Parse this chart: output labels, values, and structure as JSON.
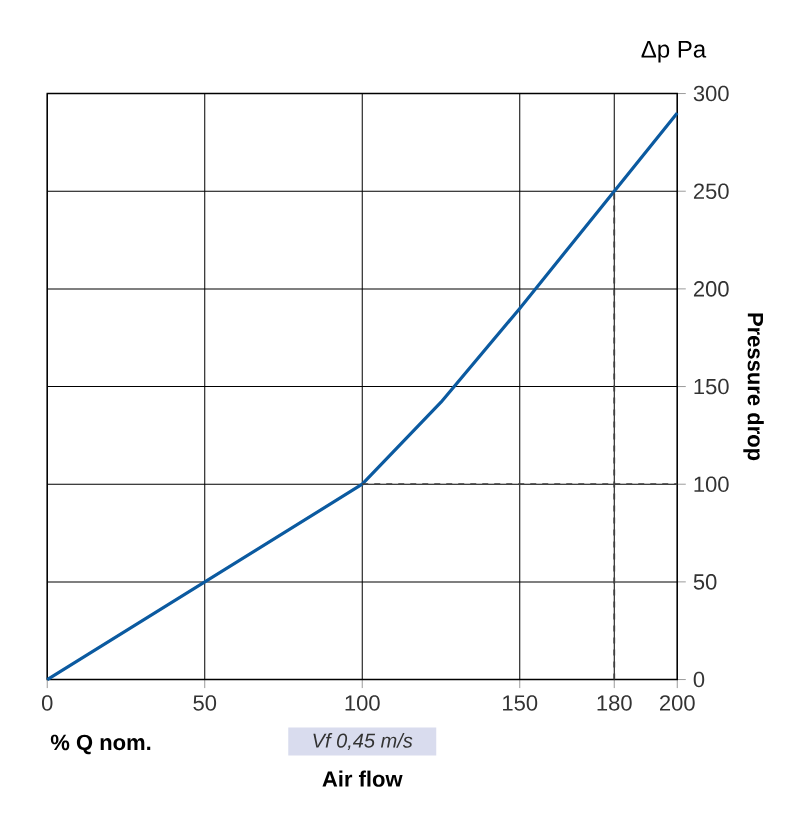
{
  "chart_data": {
    "type": "line",
    "xlabel": "Air flow",
    "ylabel": "Pressure drop",
    "annotations": [
      "Δp Pa",
      "% Q nom.",
      "*Vf 0,45 m/s*"
    ],
    "x": [
      0,
      50,
      100,
      125,
      150,
      180,
      200
    ],
    "series": [
      {
        "color": "#0b5aa0",
        "values": [
          0,
          50,
          100,
          142,
          190,
          250,
          290
        ]
      },
      {
        "x": [
          100,
          200
        ],
        "values": [
          100,
          100
        ],
        "color": "#404040",
        "line_style": "dashed"
      },
      {
        "x": [
          180,
          180
        ],
        "values": [
          0,
          250
        ],
        "color": "#404040",
        "line_style": "dashed"
      }
    ],
    "xlim": [
      0,
      200
    ],
    "ylim": [
      0,
      300
    ],
    "xticks": [
      0,
      50,
      100,
      150,
      180,
      200
    ],
    "yticks": [
      0,
      50,
      100,
      150,
      200,
      250,
      300
    ],
    "grid": true,
    "marker": "none",
    "line_style": "solid"
  }
}
